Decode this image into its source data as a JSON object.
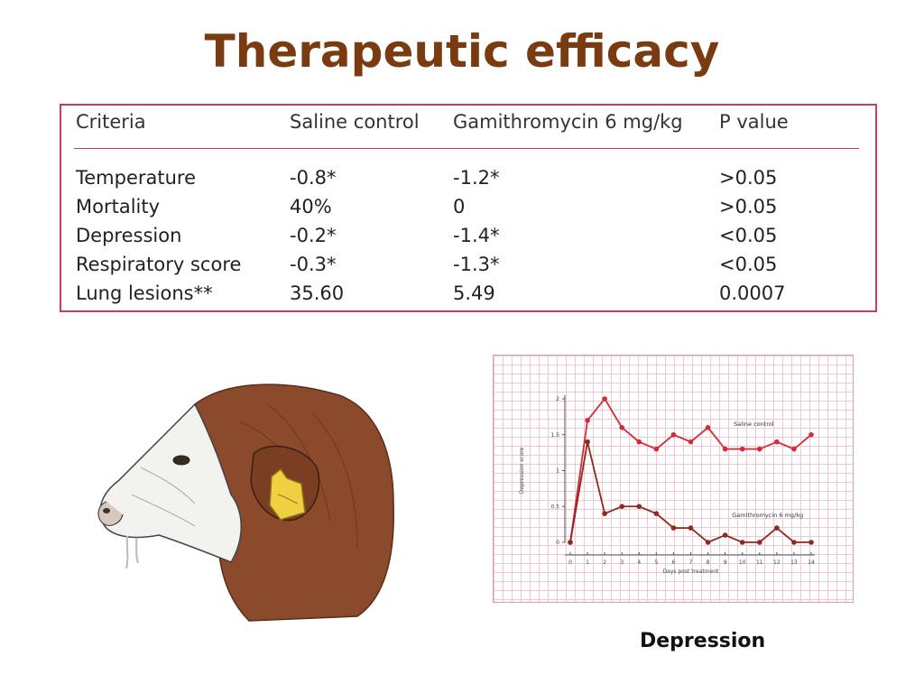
{
  "slide": {
    "title": "Therapeutic efficacy",
    "caption": "Depression"
  },
  "table": {
    "headers": [
      "Criteria",
      "Saline control",
      "Gamithromycin 6 mg/kg",
      "P value"
    ],
    "rows": [
      [
        "Temperature",
        "-0.8*",
        "-1.2*",
        ">0.05"
      ],
      [
        "Mortality",
        "40%",
        " 0",
        ">0.05"
      ],
      [
        "Depression",
        "-0.2*",
        "-1.4*",
        "<0.05"
      ],
      [
        "Respiratory score",
        "-0.3*",
        "-1.3*",
        "<0.05"
      ],
      [
        "Lung lesions**",
        "35.60",
        " 5.49",
        "0.0007"
      ]
    ],
    "border_color": "#c0405a"
  },
  "chart_data": {
    "type": "line",
    "title": "",
    "xlabel": "Days post treatment",
    "ylabel": "Depression score",
    "x": [
      0,
      1,
      2,
      3,
      4,
      5,
      6,
      7,
      8,
      9,
      10,
      11,
      12,
      13,
      14
    ],
    "x_tick_labels": [
      "0",
      "1",
      "2",
      "3",
      "4",
      "5",
      "6",
      "7",
      "8",
      "9",
      "10",
      "11",
      "12",
      "13",
      "14"
    ],
    "y_ticks": [
      0,
      0.5,
      1,
      1.5,
      2
    ],
    "y_tick_labels": [
      "0",
      "0.5",
      "1",
      "1.5",
      "2"
    ],
    "xlim": [
      0,
      14
    ],
    "ylim": [
      0,
      2
    ],
    "grid": true,
    "series": [
      {
        "name": "Saline control",
        "color": "#d42a3a",
        "values": [
          0,
          1.7,
          2.0,
          1.6,
          1.4,
          1.3,
          1.5,
          1.4,
          1.6,
          1.3,
          1.3,
          1.3,
          1.4,
          1.3,
          1.5
        ]
      },
      {
        "name": "Gamithromycin 6 mg/kg",
        "color": "#8b2a1e",
        "values": [
          0,
          1.4,
          0.4,
          0.5,
          0.5,
          0.4,
          0.2,
          0.2,
          0.0,
          0.1,
          0.0,
          0.0,
          0.2,
          0.0,
          0.0
        ]
      }
    ]
  },
  "illustration": {
    "icon": "calf-head-illustration",
    "colors": {
      "hide": "#8b4a2b",
      "face": "#f2f2ee",
      "ear_tag": "#f0d040"
    }
  }
}
